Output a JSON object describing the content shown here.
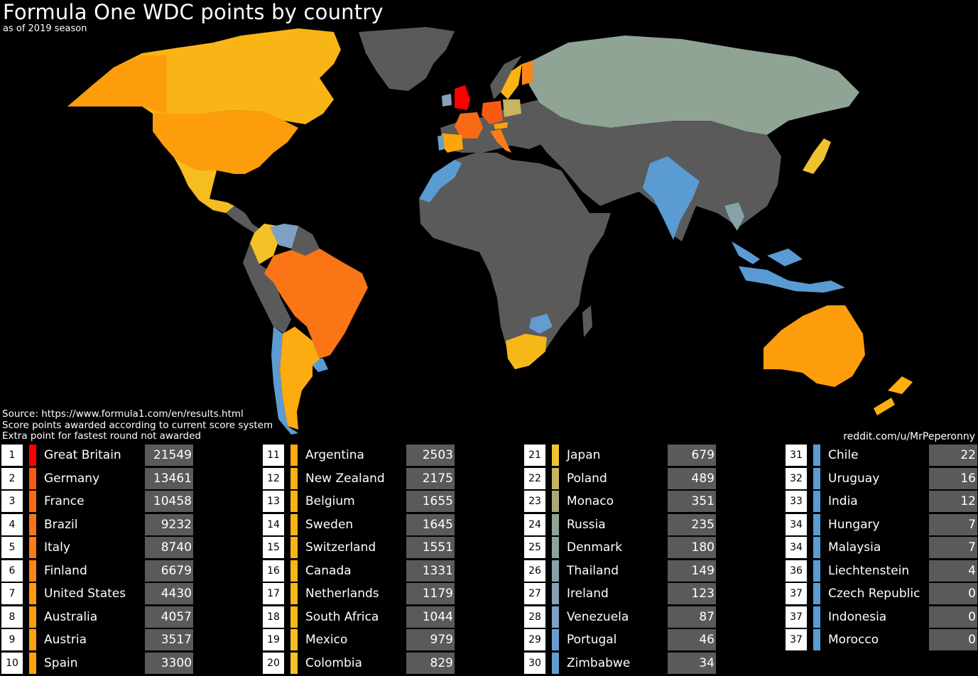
{
  "title": "Formula One WDC points by country",
  "subtitle": "as of 2019 season",
  "notes": [
    "Source: https://www.formula1.com/en/results.html",
    "Score points awarded according to current score system",
    "Extra point for fastest round not awarded"
  ],
  "credit": "reddit.com/u/MrPeperonny",
  "colors": {
    "background": "#000000",
    "land_no_points": "#5a5a5a",
    "red": "#ff0000",
    "dark_orange": "#f97516",
    "orange": "#fe9d0c",
    "amber": "#f7b515",
    "gold": "#f3c42a",
    "olive": "#bcae6a",
    "gray_green": "#8fa494",
    "steel_blue": "#8aa2bc",
    "blue": "#5a9bd4"
  },
  "legend": [
    {
      "rank": "1",
      "country": "Great Britain",
      "points": "21549",
      "color": "#ff0000"
    },
    {
      "rank": "2",
      "country": "Germany",
      "points": "13461",
      "color": "#f75b12"
    },
    {
      "rank": "3",
      "country": "France",
      "points": "10458",
      "color": "#f96a14"
    },
    {
      "rank": "4",
      "country": "Brazil",
      "points": "9232",
      "color": "#f97516"
    },
    {
      "rank": "5",
      "country": "Italy",
      "points": "8740",
      "color": "#fa7c17"
    },
    {
      "rank": "6",
      "country": "Finland",
      "points": "6679",
      "color": "#fb8617"
    },
    {
      "rank": "7",
      "country": "United States",
      "points": "4430",
      "color": "#fd9a0e"
    },
    {
      "rank": "8",
      "country": "Australia",
      "points": "4057",
      "color": "#fe9d0c"
    },
    {
      "rank": "9",
      "country": "Austria",
      "points": "3517",
      "color": "#fea20c"
    },
    {
      "rank": "10",
      "country": "Spain",
      "points": "3300",
      "color": "#fea50c"
    },
    {
      "rank": "11",
      "country": "Argentina",
      "points": "2503",
      "color": "#fcab10"
    },
    {
      "rank": "12",
      "country": "New Zealand",
      "points": "2175",
      "color": "#fbaf12"
    },
    {
      "rank": "13",
      "country": "Belgium",
      "points": "1655",
      "color": "#f9b214"
    },
    {
      "rank": "14",
      "country": "Sweden",
      "points": "1645",
      "color": "#f9b314"
    },
    {
      "rank": "15",
      "country": "Switzerland",
      "points": "1551",
      "color": "#f8b415"
    },
    {
      "rank": "16",
      "country": "Canada",
      "points": "1331",
      "color": "#f8b515"
    },
    {
      "rank": "17",
      "country": "Netherlands",
      "points": "1179",
      "color": "#f7b616"
    },
    {
      "rank": "18",
      "country": "South Africa",
      "points": "1044",
      "color": "#f6b818"
    },
    {
      "rank": "19",
      "country": "Mexico",
      "points": "979",
      "color": "#f5bd20"
    },
    {
      "rank": "20",
      "country": "Colombia",
      "points": "829",
      "color": "#f4c226"
    },
    {
      "rank": "21",
      "country": "Japan",
      "points": "679",
      "color": "#f0c22f"
    },
    {
      "rank": "22",
      "country": "Poland",
      "points": "489",
      "color": "#c6b460"
    },
    {
      "rank": "23",
      "country": "Monaco",
      "points": "351",
      "color": "#a9aa7c"
    },
    {
      "rank": "24",
      "country": "Russia",
      "points": "235",
      "color": "#8fa494"
    },
    {
      "rank": "25",
      "country": "Denmark",
      "points": "180",
      "color": "#8ba49c"
    },
    {
      "rank": "26",
      "country": "Thailand",
      "points": "149",
      "color": "#88a2aa"
    },
    {
      "rank": "27",
      "country": "Ireland",
      "points": "123",
      "color": "#86a0b4"
    },
    {
      "rank": "28",
      "country": "Venezuela",
      "points": "87",
      "color": "#7ea0c4"
    },
    {
      "rank": "29",
      "country": "Portugal",
      "points": "46",
      "color": "#6b9dcc"
    },
    {
      "rank": "30",
      "country": "Zimbabwe",
      "points": "34",
      "color": "#649cd0"
    },
    {
      "rank": "31",
      "country": "Chile",
      "points": "22",
      "color": "#5e9bd2"
    },
    {
      "rank": "32",
      "country": "Uruguay",
      "points": "16",
      "color": "#5c9bd3"
    },
    {
      "rank": "33",
      "country": "India",
      "points": "12",
      "color": "#5b9bd4"
    },
    {
      "rank": "34",
      "country": "Hungary",
      "points": "7",
      "color": "#5a9bd4"
    },
    {
      "rank": "34",
      "country": "Malaysia",
      "points": "7",
      "color": "#5a9bd4"
    },
    {
      "rank": "36",
      "country": "Liechtenstein",
      "points": "4",
      "color": "#5a9bd4"
    },
    {
      "rank": "37",
      "country": "Czech Republic",
      "points": "0",
      "color": "#5a9bd4"
    },
    {
      "rank": "37",
      "country": "Indonesia",
      "points": "0",
      "color": "#5a9bd4"
    },
    {
      "rank": "37",
      "country": "Morocco",
      "points": "0",
      "color": "#5a9bd4"
    }
  ]
}
